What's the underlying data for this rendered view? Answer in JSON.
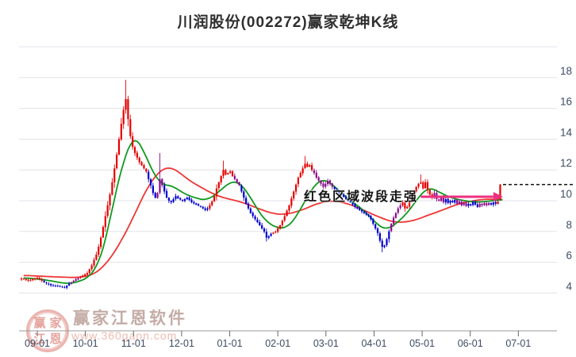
{
  "title": "川润股份(002272)赢家乾坤K线",
  "annotation": {
    "text": "红色区域波段走强"
  },
  "watermark": {
    "brand": "赢家江恩软件",
    "url": "www.360gann.com",
    "seal_chars": [
      "赢",
      "家",
      "江",
      "恩"
    ]
  },
  "chart_data": {
    "type": "candlestick",
    "title": "川润股份(002272)赢家乾坤K线",
    "stock_name": "川润股份",
    "stock_code": "002272",
    "x_tick_labels": [
      "09-01",
      "10-01",
      "11-01",
      "12-01",
      "01-01",
      "02-01",
      "03-01",
      "04-01",
      "05-01",
      "06-01",
      "07-01"
    ],
    "y_tick_labels": [
      18,
      16,
      14,
      12,
      10,
      8,
      6,
      4
    ],
    "y_gridlines": [
      20,
      18,
      16,
      14,
      12,
      10,
      8,
      6,
      4
    ],
    "ylim": [
      1.6,
      20.3
    ],
    "legend_position": "none",
    "grid": true,
    "close_path": [
      [
        0,
        4.95
      ],
      [
        3,
        4.8
      ],
      [
        7,
        5.0
      ],
      [
        10,
        4.7
      ],
      [
        13,
        4.5
      ],
      [
        16,
        4.45
      ],
      [
        19,
        4.35
      ],
      [
        21,
        4.6
      ],
      [
        24,
        4.9
      ],
      [
        26,
        5.05
      ],
      [
        29,
        5.3
      ],
      [
        31,
        5.8
      ],
      [
        33,
        6.5
      ],
      [
        34,
        7.0
      ],
      [
        35,
        7.6
      ],
      [
        36,
        8.3
      ],
      [
        37,
        9.0
      ],
      [
        38,
        9.7
      ],
      [
        39,
        10.4
      ],
      [
        40,
        11.2
      ],
      [
        41,
        12.1
      ],
      [
        42,
        13.0
      ],
      [
        43,
        14.0
      ],
      [
        44,
        15.0
      ],
      [
        45,
        15.9
      ],
      [
        46,
        16.6
      ],
      [
        47,
        15.3
      ],
      [
        48,
        14.2
      ],
      [
        49,
        13.5
      ],
      [
        50,
        13.1
      ],
      [
        51,
        12.8
      ],
      [
        52,
        12.5
      ],
      [
        53,
        12.3
      ],
      [
        54,
        12.1
      ],
      [
        55,
        11.9
      ],
      [
        56,
        11.4
      ],
      [
        57,
        11.0
      ],
      [
        58,
        10.5
      ],
      [
        59,
        10.2
      ],
      [
        60,
        10.5
      ],
      [
        61,
        11.4
      ],
      [
        62,
        11.0
      ],
      [
        63,
        10.6
      ],
      [
        64,
        10.2
      ],
      [
        65,
        10.0
      ],
      [
        66,
        9.9
      ],
      [
        67,
        10.1
      ],
      [
        68,
        10.3
      ],
      [
        69,
        10.15
      ],
      [
        71,
        10.0
      ],
      [
        73,
        10.2
      ],
      [
        75,
        9.9
      ],
      [
        77,
        9.75
      ],
      [
        79,
        9.6
      ],
      [
        81,
        9.4
      ],
      [
        82,
        9.5
      ],
      [
        83,
        9.7
      ],
      [
        84,
        9.95
      ],
      [
        85,
        10.3
      ],
      [
        86,
        10.8
      ],
      [
        87,
        11.2
      ],
      [
        88,
        11.6
      ],
      [
        89,
        12.0
      ],
      [
        90,
        11.7
      ],
      [
        92,
        11.9
      ],
      [
        93,
        11.6
      ],
      [
        94,
        11.4
      ],
      [
        95,
        11.2
      ],
      [
        96,
        11.0
      ],
      [
        97,
        10.6
      ],
      [
        98,
        10.2
      ],
      [
        99,
        9.8
      ],
      [
        100,
        9.5
      ],
      [
        101,
        9.2
      ],
      [
        103,
        8.8
      ],
      [
        105,
        8.4
      ],
      [
        107,
        8.0
      ],
      [
        108,
        7.6
      ],
      [
        109,
        7.7
      ],
      [
        110,
        7.85
      ],
      [
        112,
        8.0
      ],
      [
        114,
        8.4
      ],
      [
        116,
        9.0
      ],
      [
        118,
        9.7
      ],
      [
        120,
        10.6
      ],
      [
        122,
        11.5
      ],
      [
        124,
        12.1
      ],
      [
        125,
        12.4
      ],
      [
        126,
        12.2
      ],
      [
        127,
        12.3
      ],
      [
        128,
        12.0
      ],
      [
        129,
        11.8
      ],
      [
        130,
        11.5
      ],
      [
        131,
        11.3
      ],
      [
        132,
        11.1
      ],
      [
        133,
        10.9
      ],
      [
        134,
        11.1
      ],
      [
        135,
        11.3
      ],
      [
        136,
        11.1
      ],
      [
        137,
        10.9
      ],
      [
        139,
        10.6
      ],
      [
        141,
        10.4
      ],
      [
        143,
        10.1
      ],
      [
        145,
        9.9
      ],
      [
        147,
        9.6
      ],
      [
        149,
        9.4
      ],
      [
        151,
        9.2
      ],
      [
        153,
        9.0
      ],
      [
        154,
        8.8
      ],
      [
        155,
        8.5
      ],
      [
        156,
        8.2
      ],
      [
        157,
        7.9
      ],
      [
        158,
        7.4
      ],
      [
        159,
        7.0
      ],
      [
        160,
        7.1
      ],
      [
        161,
        7.5
      ],
      [
        162,
        8.0
      ],
      [
        163,
        8.5
      ],
      [
        164,
        8.9
      ],
      [
        165,
        9.2
      ],
      [
        166,
        9.5
      ],
      [
        167,
        9.7
      ],
      [
        168,
        9.9
      ],
      [
        169,
        9.5
      ],
      [
        170,
        9.6
      ],
      [
        171,
        10.0
      ],
      [
        172,
        10.3
      ],
      [
        173,
        10.6
      ],
      [
        174,
        10.9
      ],
      [
        175,
        11.1
      ],
      [
        176,
        11.2
      ],
      [
        177,
        10.8
      ],
      [
        178,
        11.2
      ],
      [
        179,
        10.7
      ],
      [
        180,
        10.4
      ],
      [
        181,
        10.2
      ],
      [
        182,
        10.5
      ],
      [
        183,
        10.1
      ],
      [
        184,
        10.0
      ],
      [
        185,
        10.2
      ],
      [
        186,
        9.9
      ],
      [
        187,
        10.1
      ],
      [
        188,
        9.85
      ],
      [
        189,
        10.0
      ],
      [
        190,
        9.9
      ],
      [
        191,
        10.05
      ],
      [
        192,
        9.8
      ],
      [
        193,
        9.95
      ],
      [
        194,
        9.7
      ],
      [
        195,
        9.85
      ],
      [
        196,
        9.65
      ],
      [
        197,
        9.8
      ],
      [
        198,
        9.7
      ],
      [
        199,
        9.9
      ],
      [
        200,
        9.75
      ],
      [
        201,
        9.6
      ],
      [
        202,
        9.8
      ],
      [
        203,
        9.7
      ],
      [
        204,
        9.85
      ],
      [
        205,
        9.7
      ],
      [
        206,
        9.85
      ],
      [
        207,
        9.75
      ],
      [
        208,
        9.9
      ],
      [
        209,
        9.8
      ],
      [
        210,
        9.95
      ],
      [
        211,
        11.05
      ]
    ],
    "key_candles": {
      "19": {
        "low": 4.3
      },
      "46": {
        "high": 17.85
      },
      "61": {
        "high": 13.1
      },
      "89": {
        "high": 12.6
      },
      "108": {
        "low": 7.35
      },
      "125": {
        "high": 12.9
      },
      "159": {
        "low": 6.65
      },
      "176": {
        "high": 11.7
      },
      "211": {
        "open": 10.1,
        "low": 10.0,
        "high": 11.08
      }
    },
    "color_segments": [
      [
        0,
        9,
        "up"
      ],
      [
        10,
        21,
        "down"
      ],
      [
        22,
        25,
        "neutral"
      ],
      [
        26,
        55,
        "up"
      ],
      [
        56,
        59,
        "down"
      ],
      [
        60,
        62,
        "neutral"
      ],
      [
        63,
        82,
        "down"
      ],
      [
        83,
        93,
        "up"
      ],
      [
        94,
        96,
        "neutral"
      ],
      [
        97,
        110,
        "down"
      ],
      [
        111,
        128,
        "up"
      ],
      [
        129,
        137,
        "neutral"
      ],
      [
        138,
        162,
        "down"
      ],
      [
        163,
        167,
        "neutral"
      ],
      [
        168,
        181,
        "up"
      ],
      [
        182,
        186,
        "neutral"
      ],
      [
        187,
        191,
        "down"
      ],
      [
        192,
        196,
        "neutral"
      ],
      [
        197,
        201,
        "down"
      ],
      [
        202,
        206,
        "neutral"
      ],
      [
        207,
        209,
        "down"
      ],
      [
        210,
        211,
        "up"
      ]
    ],
    "ma_fast_green": [
      [
        1,
        5.0
      ],
      [
        11,
        4.85
      ],
      [
        20,
        4.6
      ],
      [
        25,
        4.7
      ],
      [
        31,
        5.15
      ],
      [
        34,
        5.9
      ],
      [
        38,
        7.8
      ],
      [
        41,
        10.4
      ],
      [
        45,
        12.5
      ],
      [
        49,
        14.35
      ],
      [
        52,
        13.9
      ],
      [
        54,
        13.1
      ],
      [
        59,
        11.6
      ],
      [
        61,
        11.0
      ],
      [
        66,
        11.05
      ],
      [
        71,
        10.5
      ],
      [
        76,
        10.2
      ],
      [
        82,
        10.0
      ],
      [
        88,
        10.7
      ],
      [
        93,
        11.35
      ],
      [
        96,
        11.2
      ],
      [
        100,
        10.5
      ],
      [
        104,
        9.4
      ],
      [
        108,
        8.6
      ],
      [
        113,
        8.2
      ],
      [
        117,
        8.2
      ],
      [
        121,
        8.9
      ],
      [
        125,
        10.0
      ],
      [
        129,
        11.0
      ],
      [
        132,
        11.45
      ],
      [
        135,
        11.3
      ],
      [
        139,
        10.8
      ],
      [
        144,
        10.1
      ],
      [
        150,
        9.5
      ],
      [
        154,
        8.9
      ],
      [
        158,
        8.3
      ],
      [
        161,
        8.05
      ],
      [
        164,
        8.4
      ],
      [
        169,
        9.0
      ],
      [
        173,
        9.8
      ],
      [
        177,
        10.6
      ],
      [
        179,
        10.9
      ],
      [
        182,
        10.75
      ],
      [
        186,
        10.4
      ],
      [
        190,
        10.15
      ],
      [
        195,
        10.0
      ],
      [
        200,
        9.9
      ],
      [
        205,
        9.95
      ],
      [
        210,
        10.05
      ],
      [
        212,
        10.1
      ]
    ],
    "ma_slow_red": [
      [
        1,
        5.15
      ],
      [
        15,
        5.05
      ],
      [
        25,
        5.0
      ],
      [
        32,
        5.2
      ],
      [
        36,
        5.7
      ],
      [
        40,
        6.4
      ],
      [
        44,
        7.4
      ],
      [
        48,
        8.5
      ],
      [
        52,
        9.8
      ],
      [
        56,
        11.0
      ],
      [
        60,
        11.8
      ],
      [
        63,
        12.15
      ],
      [
        66,
        12.2
      ],
      [
        70,
        11.8
      ],
      [
        74,
        11.3
      ],
      [
        80,
        10.8
      ],
      [
        85,
        10.4
      ],
      [
        90,
        10.15
      ],
      [
        95,
        10.0
      ],
      [
        101,
        9.7
      ],
      [
        106,
        9.4
      ],
      [
        111,
        9.15
      ],
      [
        116,
        9.1
      ],
      [
        122,
        9.3
      ],
      [
        127,
        9.6
      ],
      [
        131,
        9.85
      ],
      [
        136,
        10.0
      ],
      [
        140,
        9.95
      ],
      [
        145,
        9.75
      ],
      [
        150,
        9.45
      ],
      [
        155,
        9.1
      ],
      [
        160,
        8.8
      ],
      [
        164,
        8.6
      ],
      [
        169,
        8.6
      ],
      [
        174,
        8.75
      ],
      [
        178,
        9.0
      ],
      [
        184,
        9.3
      ],
      [
        189,
        9.6
      ],
      [
        194,
        9.85
      ],
      [
        199,
        10.0
      ],
      [
        204,
        10.1
      ],
      [
        209,
        10.1
      ],
      [
        212,
        10.05
      ]
    ],
    "ref_dashed_line": {
      "value": 11.05
    },
    "trend_arrow_line": {
      "value": 10.26,
      "from_day": 176,
      "to_day": 208
    },
    "extremes": {
      "high": 17.85,
      "low": 4.3,
      "last_close": 11.05
    },
    "colors": {
      "up": "#e60000",
      "down": "#0000cc",
      "neutral": "#8a0b8a",
      "ma_fast": "#0f9a1f",
      "ma_slow": "#ef3636",
      "grid": "#e2e3e8",
      "axis": "#9a9a9a",
      "label": "#3e4c66",
      "ref_line": "#111111",
      "trend_line": "#ed2f7e"
    }
  }
}
